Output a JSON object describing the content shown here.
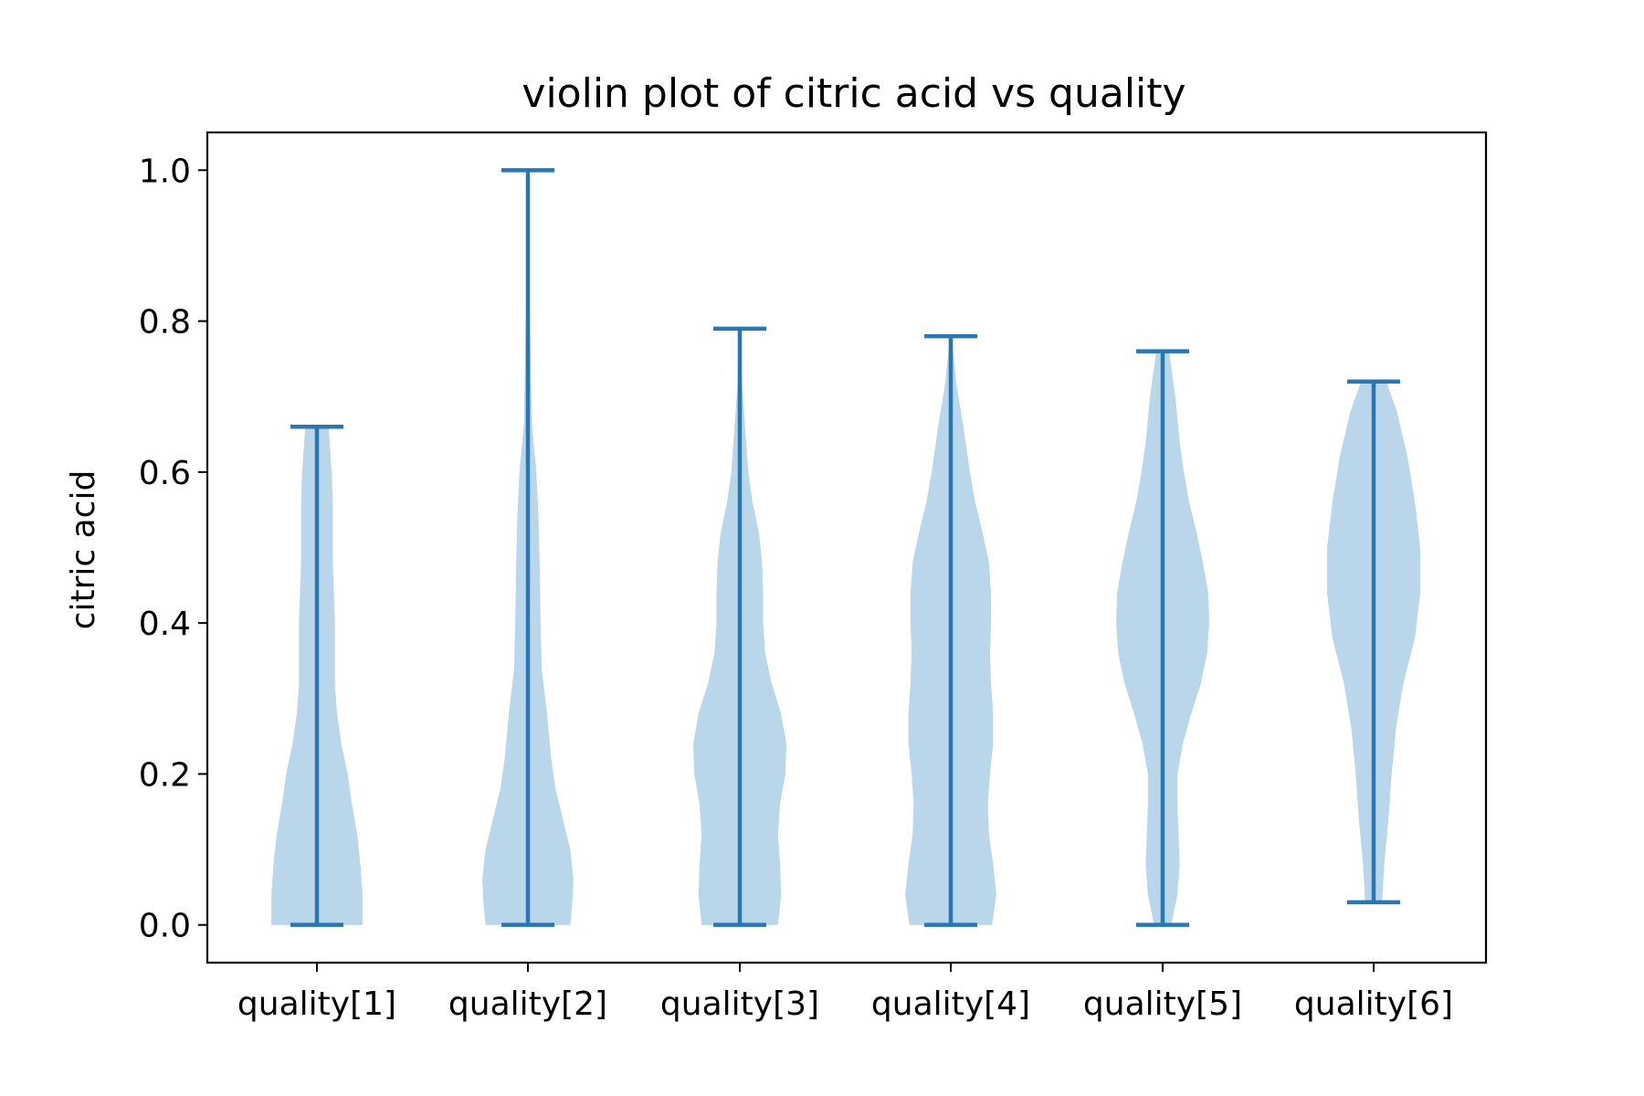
{
  "chart_data": {
    "type": "violin",
    "title": "violin plot of citric acid vs quality",
    "xlabel": "",
    "ylabel": "citric acid",
    "ylim": [
      -0.05,
      1.05
    ],
    "yticks": [
      "0.0",
      "0.2",
      "0.4",
      "0.6",
      "0.8",
      "1.0"
    ],
    "ytick_values": [
      0.0,
      0.2,
      0.4,
      0.6,
      0.8,
      1.0
    ],
    "categories": [
      "quality[1]",
      "quality[2]",
      "quality[3]",
      "quality[4]",
      "quality[5]",
      "quality[6]"
    ],
    "grid": false,
    "colors": {
      "body": "#bad6ea",
      "lines": "#2b76b1",
      "axes": "#000000"
    },
    "violins": [
      {
        "category": "quality[1]",
        "min": 0.0,
        "max": 0.66,
        "profile": [
          [
            0.0,
            0.43
          ],
          [
            0.04,
            0.43
          ],
          [
            0.08,
            0.41
          ],
          [
            0.12,
            0.38
          ],
          [
            0.16,
            0.33
          ],
          [
            0.2,
            0.29
          ],
          [
            0.24,
            0.23
          ],
          [
            0.28,
            0.19
          ],
          [
            0.32,
            0.17
          ],
          [
            0.36,
            0.17
          ],
          [
            0.4,
            0.17
          ],
          [
            0.44,
            0.16
          ],
          [
            0.48,
            0.15
          ],
          [
            0.52,
            0.15
          ],
          [
            0.56,
            0.15
          ],
          [
            0.6,
            0.14
          ],
          [
            0.64,
            0.12
          ],
          [
            0.66,
            0.11
          ]
        ]
      },
      {
        "category": "quality[2]",
        "min": 0.0,
        "max": 1.0,
        "profile": [
          [
            0.0,
            0.4
          ],
          [
            0.03,
            0.42
          ],
          [
            0.06,
            0.43
          ],
          [
            0.1,
            0.4
          ],
          [
            0.14,
            0.33
          ],
          [
            0.18,
            0.26
          ],
          [
            0.22,
            0.22
          ],
          [
            0.28,
            0.18
          ],
          [
            0.34,
            0.13
          ],
          [
            0.4,
            0.12
          ],
          [
            0.48,
            0.11
          ],
          [
            0.54,
            0.1
          ],
          [
            0.6,
            0.08
          ],
          [
            0.66,
            0.04
          ],
          [
            0.72,
            0.03
          ],
          [
            0.8,
            0.02
          ],
          [
            0.9,
            0.01
          ],
          [
            1.0,
            0.005
          ]
        ]
      },
      {
        "category": "quality[3]",
        "min": 0.0,
        "max": 0.79,
        "profile": [
          [
            0.0,
            0.36
          ],
          [
            0.04,
            0.39
          ],
          [
            0.08,
            0.38
          ],
          [
            0.12,
            0.36
          ],
          [
            0.16,
            0.38
          ],
          [
            0.2,
            0.43
          ],
          [
            0.24,
            0.44
          ],
          [
            0.28,
            0.39
          ],
          [
            0.32,
            0.3
          ],
          [
            0.36,
            0.24
          ],
          [
            0.4,
            0.22
          ],
          [
            0.44,
            0.22
          ],
          [
            0.48,
            0.21
          ],
          [
            0.52,
            0.18
          ],
          [
            0.56,
            0.12
          ],
          [
            0.6,
            0.08
          ],
          [
            0.66,
            0.05
          ],
          [
            0.72,
            0.02
          ],
          [
            0.79,
            0.01
          ]
        ]
      },
      {
        "category": "quality[4]",
        "min": 0.0,
        "max": 0.78,
        "profile": [
          [
            0.0,
            0.39
          ],
          [
            0.04,
            0.43
          ],
          [
            0.08,
            0.4
          ],
          [
            0.12,
            0.36
          ],
          [
            0.16,
            0.35
          ],
          [
            0.2,
            0.37
          ],
          [
            0.24,
            0.4
          ],
          [
            0.28,
            0.4
          ],
          [
            0.32,
            0.38
          ],
          [
            0.36,
            0.37
          ],
          [
            0.4,
            0.38
          ],
          [
            0.44,
            0.38
          ],
          [
            0.48,
            0.36
          ],
          [
            0.52,
            0.3
          ],
          [
            0.56,
            0.23
          ],
          [
            0.6,
            0.18
          ],
          [
            0.66,
            0.12
          ],
          [
            0.72,
            0.05
          ],
          [
            0.78,
            0.01
          ]
        ]
      },
      {
        "category": "quality[5]",
        "min": 0.0,
        "max": 0.76,
        "profile": [
          [
            0.0,
            0.08
          ],
          [
            0.04,
            0.14
          ],
          [
            0.08,
            0.16
          ],
          [
            0.12,
            0.15
          ],
          [
            0.16,
            0.14
          ],
          [
            0.2,
            0.14
          ],
          [
            0.24,
            0.19
          ],
          [
            0.28,
            0.27
          ],
          [
            0.32,
            0.36
          ],
          [
            0.36,
            0.42
          ],
          [
            0.4,
            0.44
          ],
          [
            0.44,
            0.43
          ],
          [
            0.48,
            0.38
          ],
          [
            0.52,
            0.32
          ],
          [
            0.56,
            0.25
          ],
          [
            0.6,
            0.2
          ],
          [
            0.64,
            0.16
          ],
          [
            0.7,
            0.12
          ],
          [
            0.76,
            0.06
          ]
        ]
      },
      {
        "category": "quality[6]",
        "min": 0.03,
        "max": 0.72,
        "profile": [
          [
            0.03,
            0.08
          ],
          [
            0.08,
            0.1
          ],
          [
            0.14,
            0.14
          ],
          [
            0.2,
            0.17
          ],
          [
            0.26,
            0.21
          ],
          [
            0.32,
            0.28
          ],
          [
            0.38,
            0.39
          ],
          [
            0.44,
            0.44
          ],
          [
            0.5,
            0.44
          ],
          [
            0.56,
            0.39
          ],
          [
            0.62,
            0.32
          ],
          [
            0.68,
            0.22
          ],
          [
            0.72,
            0.12
          ]
        ]
      }
    ]
  }
}
